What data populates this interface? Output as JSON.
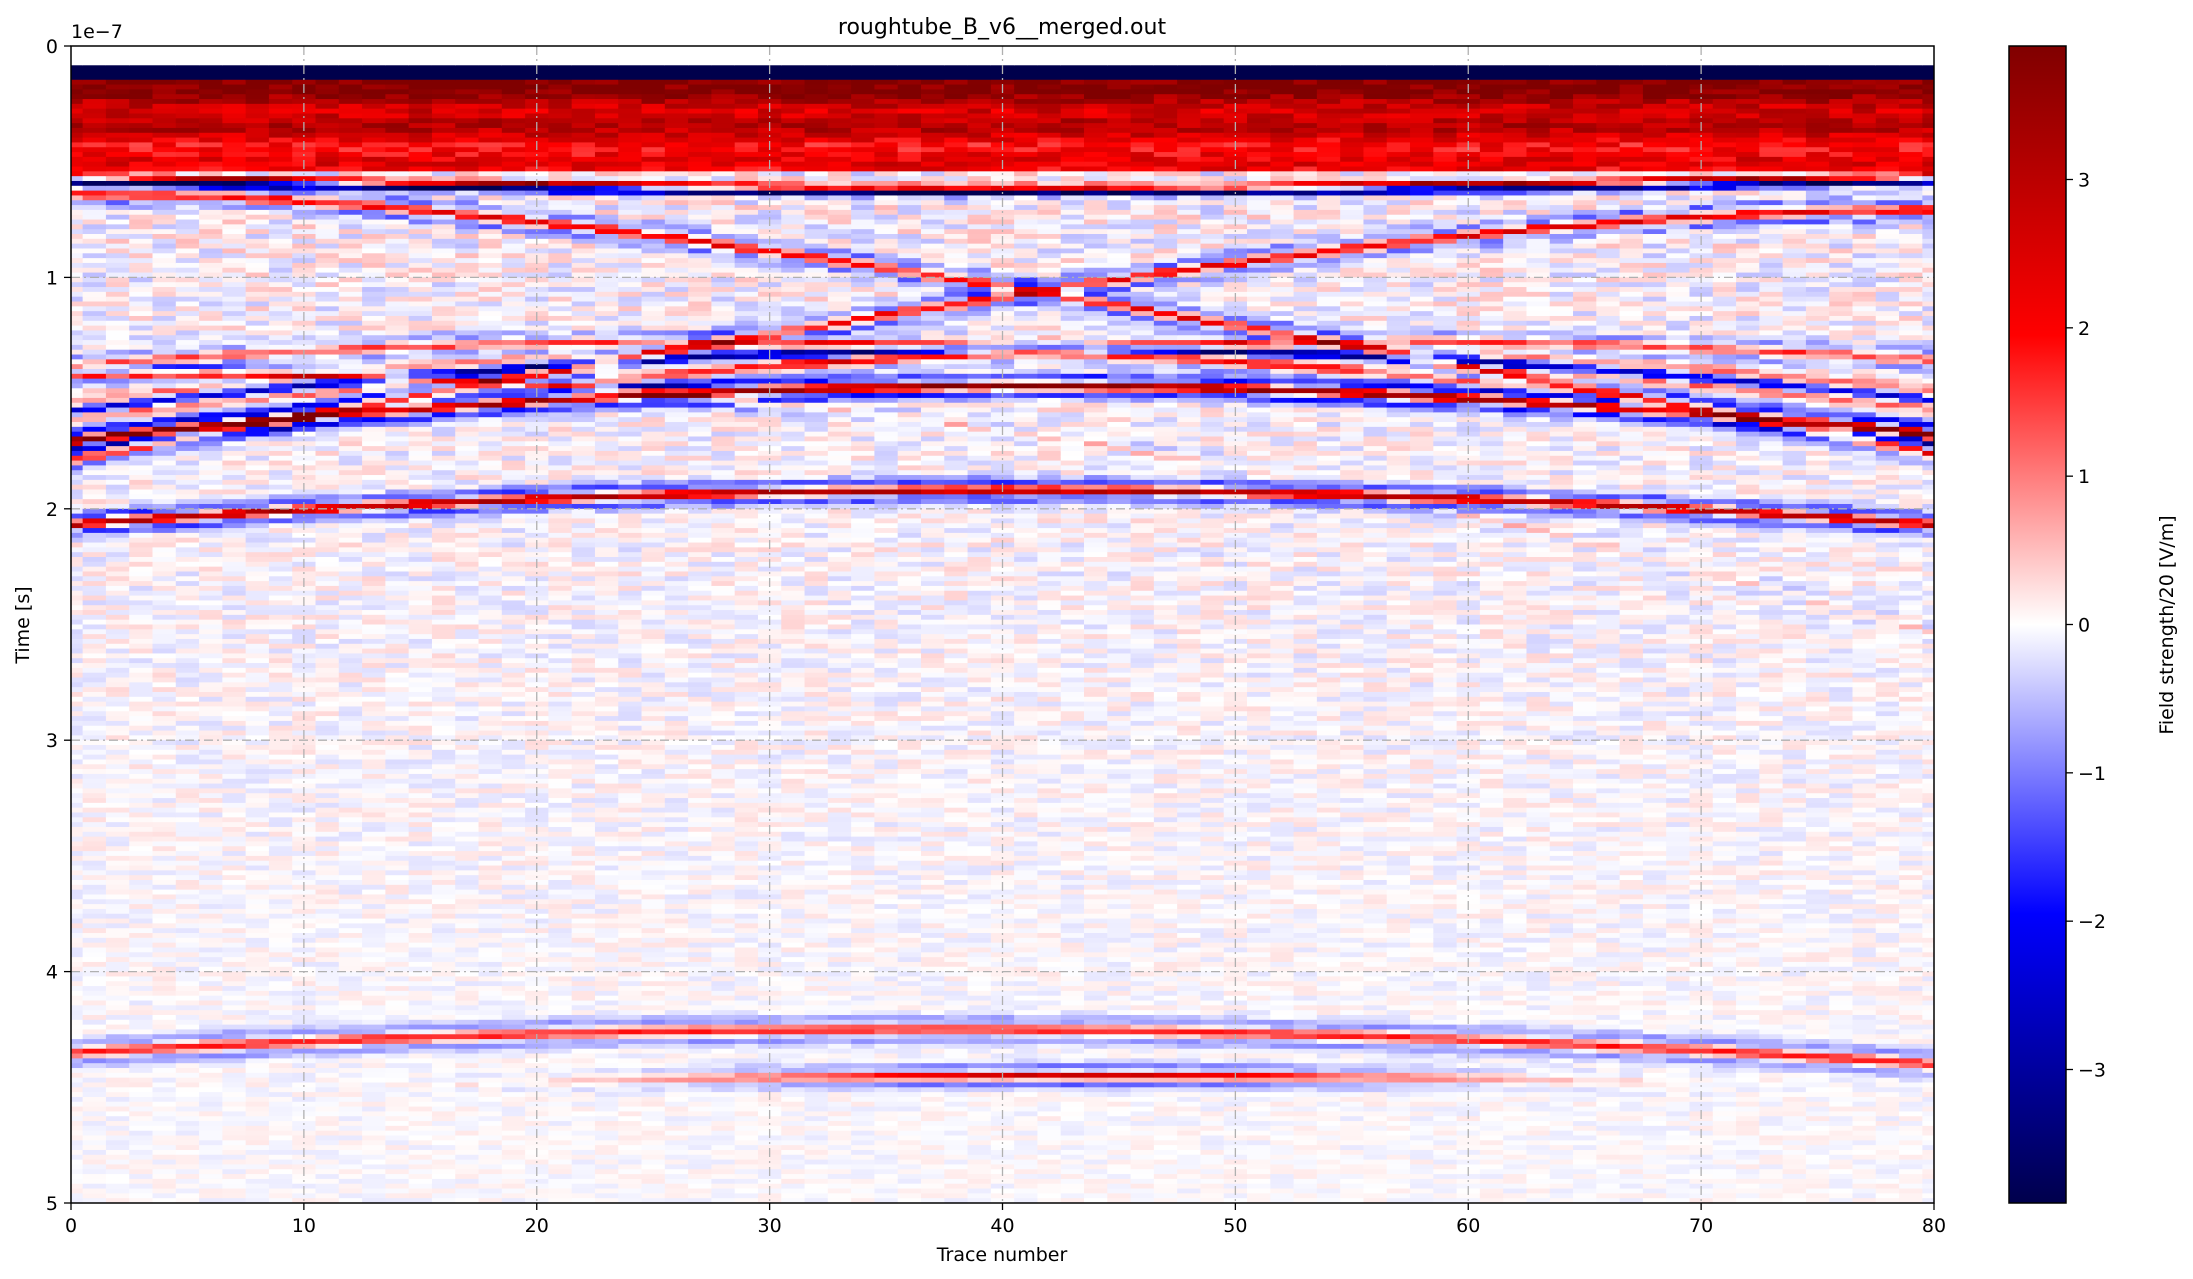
{
  "chart_data": {
    "type": "heatmap",
    "title": "roughtube_B_v6__merged.out",
    "xlabel": "Trace number",
    "ylabel": "Time [s]",
    "y_offset_label": "1e−7",
    "xlim": [
      0,
      80
    ],
    "ylim": [
      5e-07,
      0
    ],
    "x_ticks": [
      0,
      10,
      20,
      30,
      40,
      50,
      60,
      70,
      80
    ],
    "x_tick_labels": [
      "0",
      "10",
      "20",
      "30",
      "40",
      "50",
      "60",
      "70",
      "80"
    ],
    "y_ticks": [
      0,
      1e-07,
      2e-07,
      3e-07,
      4e-07,
      5e-07
    ],
    "y_tick_labels": [
      "0",
      "1",
      "2",
      "3",
      "4",
      "5"
    ],
    "grid": true,
    "colormap": "seismic",
    "colorbar": {
      "label": "Field strength/20 [V/m]",
      "range": [
        -3.9,
        3.9
      ],
      "ticks": [
        3,
        2,
        1,
        0,
        -1,
        -2,
        -3
      ],
      "tick_labels": [
        "3",
        "2",
        "1",
        "0",
        "−1",
        "−2",
        "−3"
      ]
    },
    "traces": 81,
    "reflections": [
      {
        "name": "direct-wave",
        "shape": "surface band",
        "t_start": 1e-08,
        "t_end": 6e-08
      },
      {
        "name": "hyperbola-main",
        "apex_trace": 41,
        "apex_time": 1.5e-07,
        "polarity": "mixed"
      },
      {
        "name": "hyperbola-lower",
        "apex_trace": 40,
        "apex_time": 1.92e-07,
        "polarity": "mixed"
      },
      {
        "name": "edge-diffraction-left",
        "apex_trace": 0,
        "apex_time": 6.6e-08
      },
      {
        "name": "edge-diffraction-right",
        "apex_trace": 80,
        "apex_time": 7.3e-08
      },
      {
        "name": "deep-reflector",
        "apex_trace": 42,
        "apex_time": 4.45e-07
      }
    ]
  }
}
